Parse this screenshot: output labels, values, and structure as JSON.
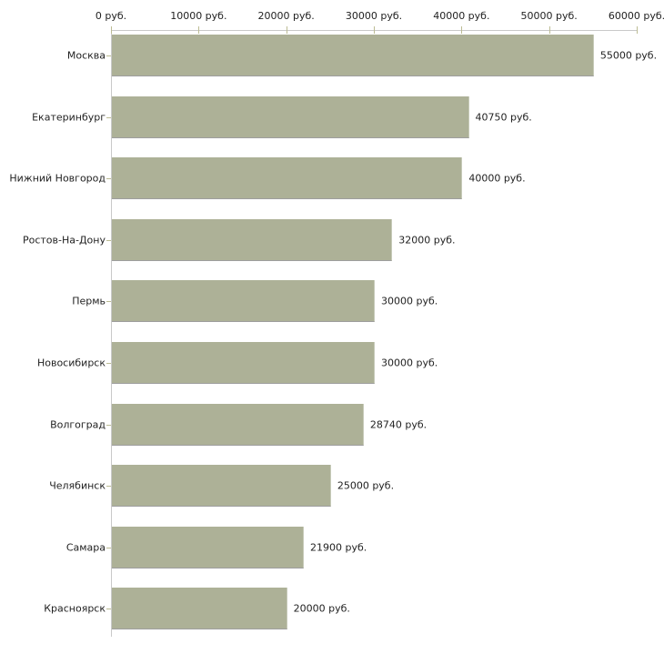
{
  "chart_data": {
    "type": "bar",
    "orientation": "horizontal",
    "title": "",
    "xlabel": "",
    "ylabel": "",
    "categories": [
      "Москва",
      "Екатеринбург",
      "Нижний Новгород",
      "Ростов-На-Дону",
      "Пермь",
      "Новосибирск",
      "Волгоград",
      "Челябинск",
      "Самара",
      "Красноярск"
    ],
    "values": [
      55000,
      40750,
      40000,
      32000,
      30000,
      30000,
      28740,
      25000,
      21900,
      20000
    ],
    "value_labels": [
      "55000 руб.",
      "40750 руб.",
      "40000 руб.",
      "32000 руб.",
      "30000 руб.",
      "30000 руб.",
      "28740 руб.",
      "25000 руб.",
      "21900 руб.",
      "20000 руб."
    ],
    "x_tick_values": [
      0,
      10000,
      20000,
      30000,
      40000,
      50000,
      60000
    ],
    "x_tick_labels": [
      "0 руб.",
      "10000 руб.",
      "20000 руб.",
      "30000 руб.",
      "40000 руб.",
      "50000 руб.",
      "60000 руб."
    ],
    "xlim": [
      0,
      60000
    ],
    "grid": false,
    "legend": null,
    "axis_position": "top-left",
    "colors": {
      "bar_fill": "#adb197",
      "axis_line": "#c9c9c9",
      "tick_mark": "#bcbc94",
      "text": "#222222"
    }
  }
}
